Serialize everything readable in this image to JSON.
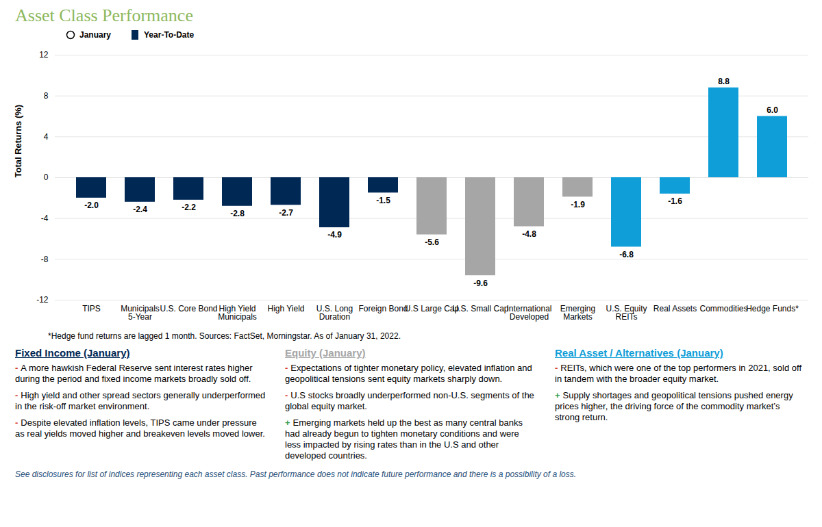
{
  "chart_data": {
    "type": "bar",
    "title": "Asset Class Performance",
    "ylabel": "Total Returns (%)",
    "categories": [
      "TIPS",
      "Municipals 5-Year",
      "U.S. Core Bond",
      "High Yield Municipals",
      "High Yield",
      "U.S. Long Duration",
      "Foreign Bond",
      "U.S Large Cap",
      "U.S. Small Cap",
      "International Developed",
      "Emerging Markets",
      "U.S. Equity REITs",
      "Real Assets",
      "Commodities",
      "Hedge Funds*"
    ],
    "series": [
      {
        "name": "January",
        "marker": "circle",
        "color": "#000000",
        "values": [
          null,
          null,
          null,
          null,
          null,
          null,
          null,
          null,
          null,
          null,
          null,
          null,
          null,
          null,
          null
        ]
      },
      {
        "name": "Year-To-Date",
        "marker": "square",
        "color": "#002855",
        "values": [
          -2.0,
          -2.4,
          -2.2,
          -2.8,
          -2.7,
          -4.9,
          -1.5,
          -5.6,
          -9.6,
          -4.8,
          -1.9,
          -6.8,
          -1.6,
          8.8,
          6.0
        ],
        "value_labels": [
          "-2.0",
          "-2.4",
          "-2.2",
          "-2.8",
          "-2.7",
          "-4.9",
          "-1.5",
          "-5.6",
          "-9.6",
          "-4.8",
          "-1.9",
          "-6.8",
          "-1.6",
          "8.8",
          "6.0"
        ],
        "colors": [
          "#002855",
          "#002855",
          "#002855",
          "#002855",
          "#002855",
          "#002855",
          "#002855",
          "#a6a6a6",
          "#a6a6a6",
          "#a6a6a6",
          "#a6a6a6",
          "#0f9ed8",
          "#0f9ed8",
          "#0f9ed8",
          "#0f9ed8"
        ]
      }
    ],
    "ylim": [
      -12,
      12
    ],
    "yticks": [
      -12,
      -8,
      -4,
      0,
      4,
      8,
      12
    ],
    "grid": true,
    "data_labels": true,
    "legend": "top-left",
    "footnote": "*Hedge fund returns are lagged 1 month.  Sources: FactSet, Morningstar. As of January 31, 2022.",
    "panels": [
      {
        "title": "Fixed Income (January)",
        "color": "#002855",
        "items": [
          {
            "sign": "-",
            "text": "A more hawkish Federal Reserve sent interest rates higher during the period and fixed income markets broadly sold off."
          },
          {
            "sign": "-",
            "text": "High yield and other spread sectors generally underperformed in the risk-off market environment."
          },
          {
            "sign": "-",
            "text": "Despite elevated inflation levels, TIPS came under pressure as real yields moved higher and breakeven levels moved lower."
          }
        ]
      },
      {
        "title": "Equity (January)",
        "color": "#a6a6a6",
        "items": [
          {
            "sign": "-",
            "text": "Expectations of tighter monetary policy, elevated inflation and geopolitical tensions sent equity markets sharply down."
          },
          {
            "sign": "-",
            "text": "U.S stocks broadly underperformed non-U.S. segments of the global equity market."
          },
          {
            "sign": "+",
            "text": "Emerging markets held up the best as many central banks had already begun to tighten monetary conditions and were less impacted by rising rates than in the U.S and other developed countries."
          }
        ]
      },
      {
        "title": "Real Asset / Alternatives (January)",
        "color": "#0f9ed8",
        "items": [
          {
            "sign": "-",
            "text": "REITs, which were one of the top performers in 2021, sold off in tandem with the broader equity market."
          },
          {
            "sign": "+",
            "text": "Supply shortages and geopolitical tensions pushed energy prices higher, the driving force of the commodity market’s strong return."
          }
        ]
      }
    ],
    "disclaimer": "See disclosures for list of indices representing each asset class. Past performance does not indicate future performance and there is a possibility of a loss."
  }
}
